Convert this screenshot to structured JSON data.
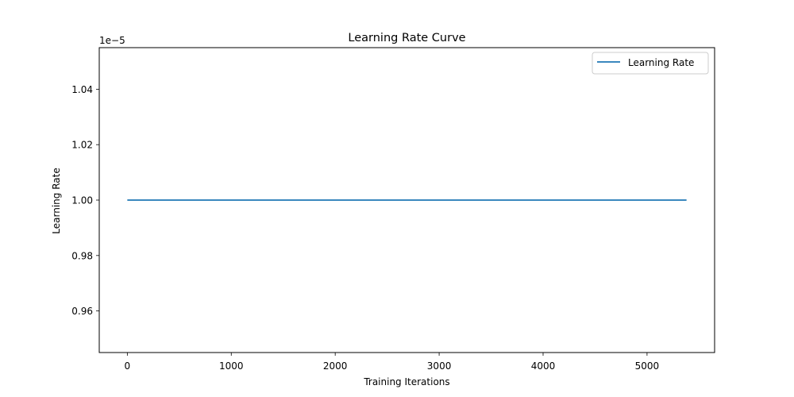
{
  "chart_data": {
    "type": "line",
    "title": "Learning Rate Curve",
    "xlabel": "Training Iterations",
    "ylabel": "Learning Rate",
    "y_offset_label": "1e−5",
    "x_ticks": [
      0,
      1000,
      2000,
      3000,
      4000,
      5000
    ],
    "x_tick_labels": [
      "0",
      "1000",
      "2000",
      "3000",
      "4000",
      "5000"
    ],
    "y_ticks": [
      0.96,
      0.98,
      1.0,
      1.02,
      1.04
    ],
    "y_tick_labels": [
      "0.96",
      "0.98",
      "1.00",
      "1.02",
      "1.04"
    ],
    "xlim": [
      -270,
      5650
    ],
    "ylim": [
      0.945,
      1.055
    ],
    "grid": false,
    "legend_position": "top-right",
    "series": [
      {
        "name": "Learning Rate",
        "color": "#1f77b4",
        "x": [
          0,
          5380
        ],
        "y": [
          1.0,
          1.0
        ]
      }
    ]
  }
}
